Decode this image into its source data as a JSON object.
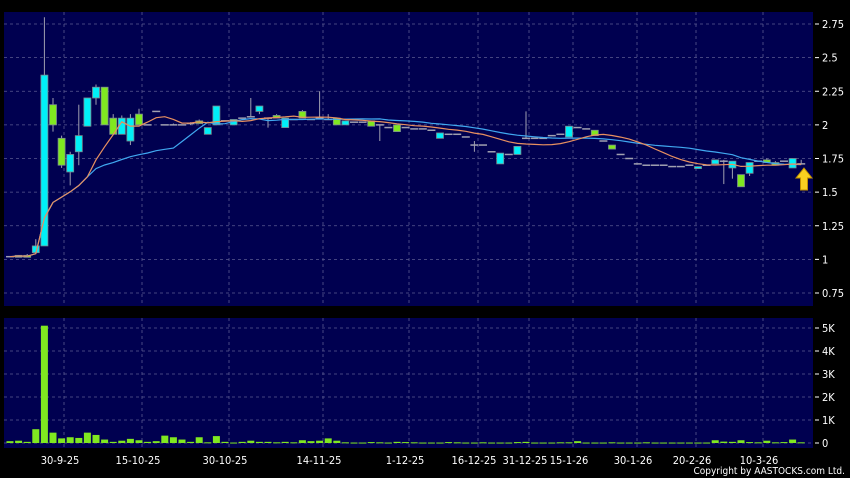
{
  "chart_data": [
    {
      "type": "candlestick",
      "panel": "price",
      "yticks": [
        "2.75",
        "2.5",
        "2.25",
        "2",
        "1.75",
        "1.5",
        "1.25",
        "1",
        " 0.75"
      ],
      "ytick_values": [
        2.75,
        2.5,
        2.25,
        2,
        1.75,
        1.5,
        1.25,
        1,
        0.75
      ],
      "ylim": [
        0.65,
        2.85
      ],
      "grid": true,
      "colors": {
        "background": "#000050",
        "up": "#00f0f8",
        "down": "#80e820",
        "flat": "#a0a0b0",
        "ma_short": "#e89060",
        "ma_long": "#40a8f0",
        "grid": "#5a5a90",
        "marker": "#f8d020"
      },
      "moving_averages": [
        10,
        20
      ],
      "candles": [
        [
          1.02,
          1.02,
          1.02,
          1.02
        ],
        [
          1.02,
          1.03,
          1.02,
          1.03
        ],
        [
          1.03,
          1.04,
          1.02,
          1.02
        ],
        [
          1.05,
          1.15,
          1.04,
          1.1
        ],
        [
          1.1,
          2.8,
          1.1,
          2.37
        ],
        [
          2.15,
          2.2,
          1.95,
          2.0
        ],
        [
          1.9,
          1.92,
          1.68,
          1.7
        ],
        [
          1.65,
          1.8,
          1.55,
          1.78
        ],
        [
          1.8,
          2.15,
          1.7,
          1.92
        ],
        [
          1.99,
          2.2,
          1.99,
          2.2
        ],
        [
          2.2,
          2.3,
          2.15,
          2.28
        ],
        [
          2.28,
          2.28,
          2.0,
          2.0
        ],
        [
          2.05,
          2.08,
          1.93,
          1.93
        ],
        [
          1.93,
          2.07,
          1.93,
          2.05
        ],
        [
          1.88,
          2.08,
          1.85,
          2.05
        ],
        [
          2.08,
          2.12,
          2.0,
          2.0
        ],
        [
          2.0,
          2.0,
          2.0,
          2.0
        ],
        [
          2.1,
          2.1,
          2.1,
          2.1
        ],
        [
          2.0,
          2.0,
          2.0,
          2.0
        ],
        [
          2.0,
          2.01,
          2.0,
          2.0
        ],
        [
          2.0,
          2.0,
          2.0,
          2.0
        ],
        [
          2.01,
          2.02,
          2.0,
          2.01
        ],
        [
          2.03,
          2.04,
          2.01,
          2.01
        ],
        [
          1.93,
          1.98,
          1.93,
          1.98
        ],
        [
          2.0,
          2.14,
          2.0,
          2.14
        ],
        [
          2.03,
          2.03,
          2.03,
          2.03
        ],
        [
          2.0,
          2.04,
          2.0,
          2.04
        ],
        [
          2.05,
          2.05,
          2.05,
          2.05
        ],
        [
          2.06,
          2.2,
          2.06,
          2.06
        ],
        [
          2.1,
          2.14,
          2.08,
          2.14
        ],
        [
          2.05,
          2.05,
          1.98,
          2.05
        ],
        [
          2.07,
          2.08,
          2.05,
          2.05
        ],
        [
          1.98,
          2.05,
          1.98,
          2.05
        ],
        [
          2.04,
          2.04,
          2.04,
          2.04
        ],
        [
          2.1,
          2.11,
          2.05,
          2.05
        ],
        [
          2.04,
          2.04,
          2.04,
          2.04
        ],
        [
          2.05,
          2.25,
          2.04,
          2.05
        ],
        [
          2.04,
          2.08,
          2.04,
          2.04
        ],
        [
          2.05,
          2.05,
          2.0,
          2.0
        ],
        [
          2.0,
          2.03,
          2.0,
          2.03
        ],
        [
          2.02,
          2.02,
          2.02,
          2.02
        ],
        [
          2.02,
          2.02,
          2.02,
          2.02
        ],
        [
          2.03,
          2.03,
          1.99,
          1.99
        ],
        [
          2.0,
          2.0,
          1.88,
          2.0
        ],
        [
          1.98,
          1.98,
          1.98,
          1.98
        ],
        [
          2.0,
          2.0,
          1.95,
          1.95
        ],
        [
          1.98,
          1.98,
          1.98,
          1.98
        ],
        [
          1.97,
          1.97,
          1.97,
          1.97
        ],
        [
          1.97,
          1.97,
          1.97,
          1.97
        ],
        [
          1.96,
          1.96,
          1.96,
          1.96
        ],
        [
          1.9,
          1.94,
          1.9,
          1.94
        ],
        [
          1.93,
          1.93,
          1.93,
          1.93
        ],
        [
          1.93,
          1.93,
          1.93,
          1.93
        ],
        [
          1.91,
          1.91,
          1.91,
          1.91
        ],
        [
          1.85,
          1.88,
          1.8,
          1.85
        ],
        [
          1.85,
          1.85,
          1.85,
          1.85
        ],
        [
          1.8,
          1.8,
          1.8,
          1.8
        ],
        [
          1.71,
          1.79,
          1.71,
          1.79
        ],
        [
          1.78,
          1.78,
          1.78,
          1.78
        ],
        [
          1.78,
          1.84,
          1.78,
          1.84
        ],
        [
          1.9,
          2.1,
          1.9,
          1.9
        ],
        [
          1.9,
          1.9,
          1.9,
          1.9
        ],
        [
          1.9,
          1.9,
          1.9,
          1.9
        ],
        [
          1.92,
          1.92,
          1.92,
          1.92
        ],
        [
          1.93,
          1.93,
          1.93,
          1.93
        ],
        [
          1.91,
          1.99,
          1.91,
          1.99
        ],
        [
          1.98,
          1.98,
          1.98,
          1.98
        ],
        [
          1.97,
          1.97,
          1.97,
          1.97
        ],
        [
          1.96,
          1.96,
          1.92,
          1.92
        ],
        [
          1.88,
          1.88,
          1.88,
          1.88
        ],
        [
          1.85,
          1.85,
          1.82,
          1.82
        ],
        [
          1.78,
          1.78,
          1.78,
          1.78
        ],
        [
          1.75,
          1.75,
          1.75,
          1.75
        ],
        [
          1.71,
          1.71,
          1.71,
          1.71
        ],
        [
          1.7,
          1.7,
          1.7,
          1.7
        ],
        [
          1.7,
          1.7,
          1.7,
          1.7
        ],
        [
          1.7,
          1.7,
          1.7,
          1.7
        ],
        [
          1.69,
          1.69,
          1.69,
          1.69
        ],
        [
          1.69,
          1.69,
          1.69,
          1.69
        ],
        [
          1.7,
          1.7,
          1.7,
          1.7
        ],
        [
          1.68,
          1.69,
          1.68,
          1.69
        ],
        [
          1.7,
          1.7,
          1.7,
          1.7
        ],
        [
          1.71,
          1.74,
          1.71,
          1.74
        ],
        [
          1.73,
          1.74,
          1.56,
          1.73
        ],
        [
          1.68,
          1.73,
          1.6,
          1.73
        ],
        [
          1.63,
          1.63,
          1.54,
          1.54
        ],
        [
          1.64,
          1.72,
          1.62,
          1.72
        ],
        [
          1.73,
          1.73,
          1.73,
          1.73
        ],
        [
          1.74,
          1.75,
          1.72,
          1.72
        ],
        [
          1.72,
          1.73,
          1.7,
          1.7
        ],
        [
          1.73,
          1.73,
          1.73,
          1.73
        ],
        [
          1.68,
          1.75,
          1.68,
          1.75
        ],
        [
          1.71,
          1.74,
          1.71,
          1.71
        ]
      ]
    },
    {
      "type": "bar",
      "panel": "volume",
      "yticks": [
        "5K",
        "4K",
        "3K",
        "2K",
        "1K",
        "0"
      ],
      "ytick_values": [
        5000,
        4000,
        3000,
        2000,
        1000,
        0
      ],
      "ylim": [
        0,
        5300
      ],
      "values": [
        80,
        100,
        50,
        600,
        5100,
        450,
        200,
        250,
        220,
        450,
        350,
        150,
        50,
        100,
        180,
        120,
        50,
        80,
        320,
        250,
        150,
        50,
        250,
        30,
        300,
        50,
        20,
        50,
        100,
        50,
        50,
        30,
        50,
        30,
        120,
        80,
        100,
        200,
        100,
        30,
        20,
        20,
        40,
        30,
        20,
        50,
        40,
        30,
        20,
        20,
        20,
        40,
        30,
        20,
        20,
        30,
        20,
        20,
        20,
        40,
        50,
        20,
        20,
        20,
        30,
        30,
        80,
        20,
        20,
        20,
        30,
        20,
        20,
        20,
        30,
        20,
        20,
        20,
        20,
        20,
        20,
        20,
        120,
        60,
        50,
        120,
        40,
        30,
        100,
        30,
        40,
        150,
        30
      ]
    }
  ],
  "xaxis": {
    "labels": [
      "30-9-25",
      "15-10-25",
      "30-10-25",
      "14-11-25",
      "1-12-25",
      "16-12-25",
      "31-12-25",
      "15-1-26",
      "30-1-26",
      "20-2-26",
      "10-3-26"
    ]
  },
  "footer": {
    "copyright": "Copyright by AASTOCKS.com Ltd."
  }
}
